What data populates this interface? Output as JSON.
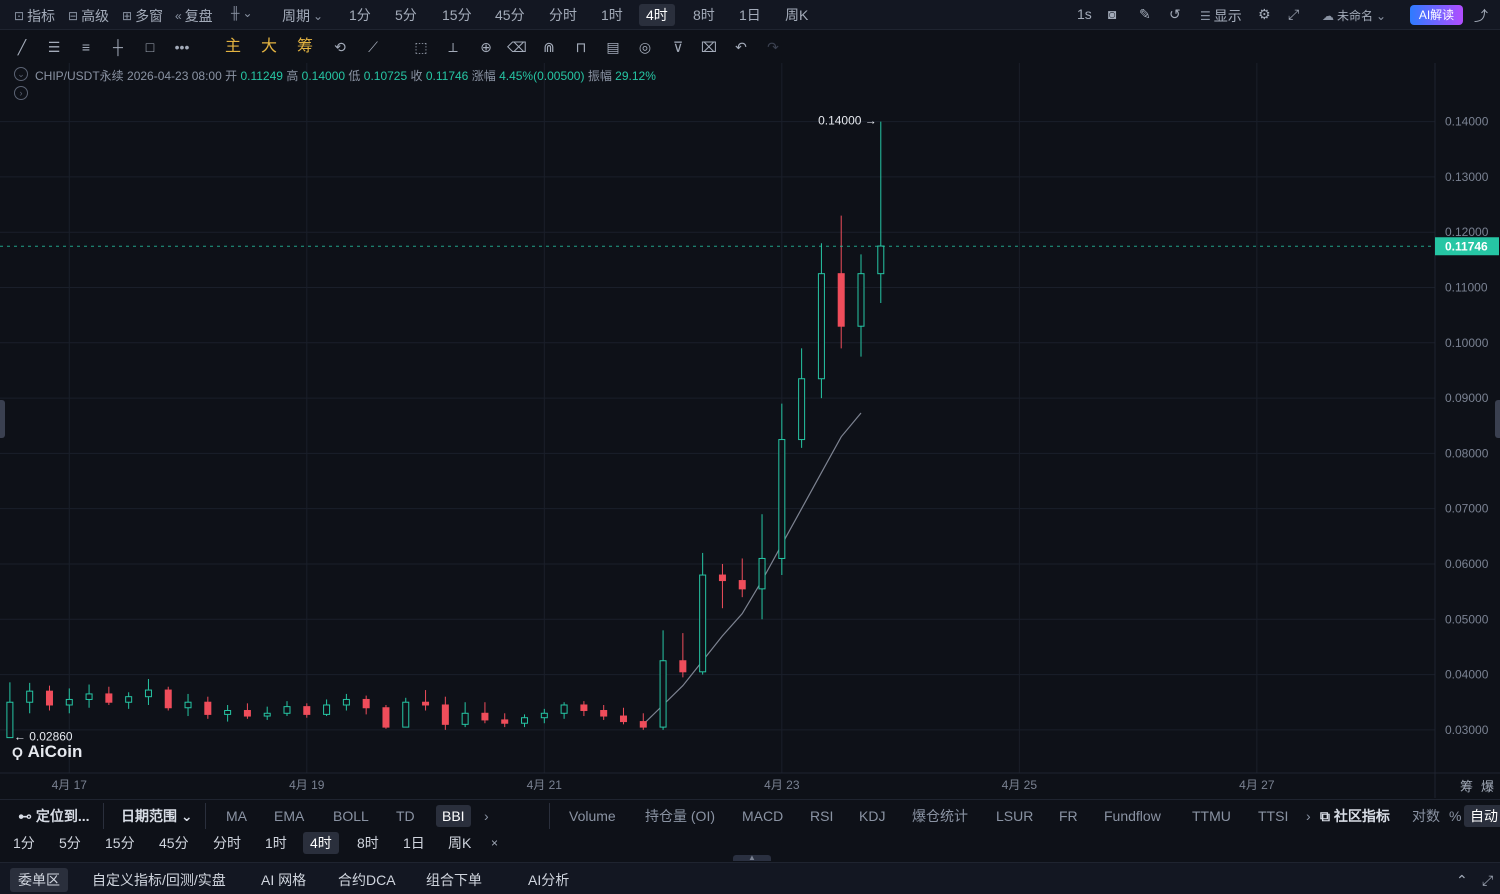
{
  "toolbar": {
    "indicators_label": "指标",
    "advanced_label": "高级",
    "multiwindow_label": "多窗",
    "replay_label": "复盘",
    "period_label": "周期",
    "periods": [
      "1分",
      "5分",
      "15分",
      "45分",
      "分时",
      "1时",
      "4时",
      "8时",
      "1日",
      "周K"
    ],
    "active_period": "4时",
    "refresh_label": "1s",
    "display_label": "显示",
    "layout_name": "未命名",
    "ai_label": "AI解读"
  },
  "drawing_tools": {
    "main_label": "主",
    "big_label": "大",
    "chips_label": "筹"
  },
  "ohlc": {
    "symbol": "CHIP/USDT永续",
    "datetime": "2026-04-23 08:00",
    "open_label": "开",
    "open": "0.11249",
    "high_label": "高",
    "high": "0.14000",
    "low_label": "低",
    "low": "0.10725",
    "close_label": "收",
    "close": "0.11746",
    "change_label": "涨幅",
    "change": "4.45%(0.00500)",
    "amplitude_label": "振幅",
    "amplitude": "29.12%"
  },
  "chart_data": {
    "type": "candlestick",
    "x_ticks": [
      "4月 17",
      "4月 19",
      "4月 21",
      "4月 23",
      "4月 25",
      "4月 27"
    ],
    "y_ticks": [
      "0.14000",
      "0.13000",
      "0.12000",
      "0.11000",
      "0.10000",
      "0.09000",
      "0.08000",
      "0.07000",
      "0.06000",
      "0.05000",
      "0.04000",
      "0.03000"
    ],
    "ylim": [
      0.0222,
      0.1506
    ],
    "xlim": [
      "2026-04-16T10:00",
      "2026-04-28T12:00"
    ],
    "last_price": "0.11746",
    "max_label": "0.14000",
    "min_label": "0.02860",
    "colors": {
      "up": "#26c6a4",
      "down": "#ef4d5b",
      "ma": "#7d8391",
      "grid": "#1a1f2a"
    },
    "candles": [
      [
        "2026-04-16T12:00",
        0.0286,
        0.0386,
        0.0286,
        0.035
      ],
      [
        "2026-04-16T16:00",
        0.035,
        0.0385,
        0.033,
        0.037
      ],
      [
        "2026-04-16T20:00",
        0.037,
        0.038,
        0.0335,
        0.0345
      ],
      [
        "2026-04-17T00:00",
        0.0345,
        0.0375,
        0.033,
        0.0355
      ],
      [
        "2026-04-17T04:00",
        0.0355,
        0.0382,
        0.034,
        0.0365
      ],
      [
        "2026-04-17T08:00",
        0.0365,
        0.0378,
        0.0345,
        0.035
      ],
      [
        "2026-04-17T12:00",
        0.035,
        0.0368,
        0.0338,
        0.036
      ],
      [
        "2026-04-17T16:00",
        0.036,
        0.0392,
        0.0345,
        0.0372
      ],
      [
        "2026-04-17T20:00",
        0.0372,
        0.0378,
        0.0335,
        0.034
      ],
      [
        "2026-04-18T00:00",
        0.034,
        0.0365,
        0.0325,
        0.035
      ],
      [
        "2026-04-18T04:00",
        0.035,
        0.036,
        0.032,
        0.0328
      ],
      [
        "2026-04-18T08:00",
        0.0328,
        0.0345,
        0.0315,
        0.0335
      ],
      [
        "2026-04-18T12:00",
        0.0335,
        0.0348,
        0.032,
        0.0325
      ],
      [
        "2026-04-18T16:00",
        0.0325,
        0.0342,
        0.0318,
        0.033
      ],
      [
        "2026-04-18T20:00",
        0.033,
        0.0352,
        0.0325,
        0.0342
      ],
      [
        "2026-04-19T00:00",
        0.0342,
        0.0348,
        0.0322,
        0.0328
      ],
      [
        "2026-04-19T04:00",
        0.0328,
        0.0355,
        0.0325,
        0.0345
      ],
      [
        "2026-04-19T08:00",
        0.0345,
        0.0365,
        0.0335,
        0.0355
      ],
      [
        "2026-04-19T12:00",
        0.0355,
        0.0362,
        0.0328,
        0.034
      ],
      [
        "2026-04-19T16:00",
        0.034,
        0.0345,
        0.0302,
        0.0305
      ],
      [
        "2026-04-19T20:00",
        0.0305,
        0.0358,
        0.0305,
        0.035
      ],
      [
        "2026-04-20T00:00",
        0.035,
        0.0372,
        0.0335,
        0.0345
      ],
      [
        "2026-04-20T04:00",
        0.0345,
        0.036,
        0.03,
        0.031
      ],
      [
        "2026-04-20T08:00",
        0.031,
        0.035,
        0.0305,
        0.033
      ],
      [
        "2026-04-20T12:00",
        0.033,
        0.035,
        0.0312,
        0.0318
      ],
      [
        "2026-04-20T16:00",
        0.0318,
        0.033,
        0.0305,
        0.0312
      ],
      [
        "2026-04-20T20:00",
        0.0312,
        0.0328,
        0.0305,
        0.0322
      ],
      [
        "2026-04-21T00:00",
        0.0322,
        0.0338,
        0.0312,
        0.033
      ],
      [
        "2026-04-21T04:00",
        0.033,
        0.035,
        0.032,
        0.0345
      ],
      [
        "2026-04-21T08:00",
        0.0345,
        0.0352,
        0.0325,
        0.0335
      ],
      [
        "2026-04-21T12:00",
        0.0335,
        0.0345,
        0.0318,
        0.0325
      ],
      [
        "2026-04-21T16:00",
        0.0325,
        0.034,
        0.031,
        0.0315
      ],
      [
        "2026-04-21T20:00",
        0.0315,
        0.033,
        0.03,
        0.0305
      ],
      [
        "2026-04-22T00:00",
        0.0305,
        0.048,
        0.03,
        0.0425
      ],
      [
        "2026-04-22T04:00",
        0.0425,
        0.0475,
        0.0395,
        0.0405
      ],
      [
        "2026-04-22T08:00",
        0.0405,
        0.062,
        0.04,
        0.058
      ],
      [
        "2026-04-22T12:00",
        0.058,
        0.06,
        0.052,
        0.057
      ],
      [
        "2026-04-22T16:00",
        0.057,
        0.061,
        0.054,
        0.0555
      ],
      [
        "2026-04-22T20:00",
        0.0555,
        0.069,
        0.05,
        0.061
      ],
      [
        "2026-04-23T00:00",
        0.061,
        0.089,
        0.058,
        0.0825
      ],
      [
        "2026-04-23T04:00",
        0.0825,
        0.099,
        0.081,
        0.0935
      ],
      [
        "2026-04-23T08:00",
        0.0935,
        0.118,
        0.09,
        0.1125
      ],
      [
        "2026-04-23T12:00",
        0.1125,
        0.123,
        0.099,
        0.103
      ],
      [
        "2026-04-23T16:00",
        0.103,
        0.116,
        0.0975,
        0.1125
      ],
      [
        "2026-04-23T20:00",
        0.1125,
        0.14,
        0.1072,
        0.1175
      ]
    ],
    "ma_line": [
      [
        "2026-04-21T20:00",
        0.031
      ],
      [
        "2026-04-22T00:00",
        0.0345
      ],
      [
        "2026-04-22T04:00",
        0.038
      ],
      [
        "2026-04-22T08:00",
        0.0425
      ],
      [
        "2026-04-22T12:00",
        0.047
      ],
      [
        "2026-04-22T16:00",
        0.051
      ],
      [
        "2026-04-22T20:00",
        0.057
      ],
      [
        "2026-04-23T00:00",
        0.0635
      ],
      [
        "2026-04-23T04:00",
        0.07
      ],
      [
        "2026-04-23T08:00",
        0.0765
      ],
      [
        "2026-04-23T12:00",
        0.083
      ],
      [
        "2026-04-23T16:00",
        0.0873
      ]
    ],
    "watermark": "AiCoin"
  },
  "indicators": {
    "locate_label": "定位到...",
    "date_range_label": "日期范围",
    "main": [
      "MA",
      "EMA",
      "BOLL",
      "TD",
      "BBI"
    ],
    "active_main": "BBI",
    "sub": [
      "Volume",
      "持仓量 (OI)",
      "MACD",
      "RSI",
      "KDJ",
      "爆仓统计",
      "LSUR",
      "FR",
      "Fundflow",
      "TTMU",
      "TTSI"
    ],
    "community_label": "社区指标",
    "log_label": "对数",
    "percent_label": "%",
    "auto_label": "自动",
    "right_labels": [
      "筹",
      "爆"
    ]
  },
  "bottom_periods": [
    "1分",
    "5分",
    "15分",
    "45分",
    "分时",
    "1时",
    "4时",
    "8时",
    "1日",
    "周K"
  ],
  "bottom_active_period": "4时",
  "bottom_tabs": [
    "委单区",
    "自定义指标/回测/实盘",
    "AI 网格",
    "合约DCA",
    "组合下单",
    "AI分析"
  ]
}
